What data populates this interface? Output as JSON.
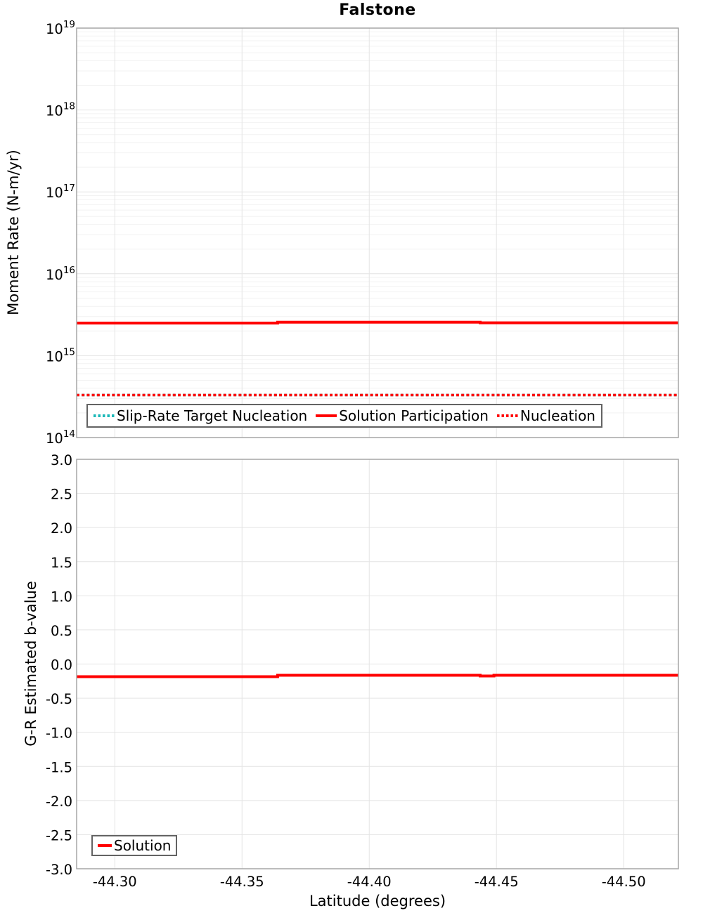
{
  "title": "Falstone",
  "colors": {
    "red": "#ff0000",
    "teal": "#1cb8b8",
    "grid_minor": "#f2f2f2",
    "grid_major": "#e4e4e4",
    "panel_border": "#a6a6a6",
    "legend_border": "#636363",
    "text": "#000000"
  },
  "chart_data": [
    {
      "type": "line",
      "panel": "moment-rate",
      "title": "Falstone",
      "ylabel": "Moment Rate (N-m/yr)",
      "yscale": "log",
      "ylim_exp": [
        14,
        19
      ],
      "y_ticks": [
        {
          "base": "10",
          "exp": "19"
        },
        {
          "base": "10",
          "exp": "18"
        },
        {
          "base": "10",
          "exp": "17"
        },
        {
          "base": "10",
          "exp": "16"
        },
        {
          "base": "10",
          "exp": "15"
        },
        {
          "base": "10",
          "exp": "14"
        }
      ],
      "xlim": [
        -44.285,
        -44.5215
      ],
      "x_grid": [
        -44.3,
        -44.35,
        -44.4,
        -44.45,
        -44.5
      ],
      "legend": [
        {
          "label": "Slip-Rate Target Nucleation",
          "color_key": "teal",
          "dash": "dotted"
        },
        {
          "label": "Solution Participation",
          "color_key": "red",
          "dash": "solid"
        },
        {
          "label": "Nucleation",
          "color_key": "red",
          "dash": "dotted"
        }
      ],
      "series": [
        {
          "name": "Slip-Rate Target Nucleation",
          "color_key": "teal",
          "dash": "dotted",
          "width": 3.5,
          "points": [
            [
              -44.285,
              330000000000000.0
            ],
            [
              -44.5215,
              330000000000000.0
            ]
          ]
        },
        {
          "name": "Nucleation",
          "color_key": "red",
          "dash": "dotted",
          "width": 3.5,
          "points": [
            [
              -44.285,
              330000000000000.0
            ],
            [
              -44.5215,
              330000000000000.0
            ]
          ]
        },
        {
          "name": "Solution Participation",
          "color_key": "red",
          "dash": "solid",
          "width": 4,
          "points": [
            [
              -44.285,
              2500000000000000.0
            ],
            [
              -44.364,
              2500000000000000.0
            ],
            [
              -44.364,
              2560000000000000.0
            ],
            [
              -44.4436,
              2560000000000000.0
            ],
            [
              -44.4436,
              2520000000000000.0
            ],
            [
              -44.5215,
              2520000000000000.0
            ]
          ]
        }
      ]
    },
    {
      "type": "line",
      "panel": "b-value",
      "ylabel": "G-R Estimated b-value",
      "xlabel": "Latitude (degrees)",
      "ylim": [
        -3.0,
        3.0
      ],
      "y_ticks": [
        {
          "value": 3.0,
          "label": "3.0"
        },
        {
          "value": 2.5,
          "label": "2.5"
        },
        {
          "value": 2.0,
          "label": "2.0"
        },
        {
          "value": 1.5,
          "label": "1.5"
        },
        {
          "value": 1.0,
          "label": "1.0"
        },
        {
          "value": 0.5,
          "label": "0.5"
        },
        {
          "value": 0.0,
          "label": "0.0"
        },
        {
          "value": -0.5,
          "label": "-0.5"
        },
        {
          "value": -1.0,
          "label": "-1.0"
        },
        {
          "value": -1.5,
          "label": "-1.5"
        },
        {
          "value": -2.0,
          "label": "-2.0"
        },
        {
          "value": -2.5,
          "label": "-2.5"
        },
        {
          "value": -3.0,
          "label": "-3.0"
        }
      ],
      "xlim": [
        -44.285,
        -44.5215
      ],
      "x_ticks": [
        {
          "value": -44.3,
          "label": "-44.30"
        },
        {
          "value": -44.35,
          "label": "-44.35"
        },
        {
          "value": -44.4,
          "label": "-44.40"
        },
        {
          "value": -44.45,
          "label": "-44.45"
        },
        {
          "value": -44.5,
          "label": "-44.50"
        }
      ],
      "legend": [
        {
          "label": "Solution",
          "color_key": "red",
          "dash": "solid"
        }
      ],
      "series": [
        {
          "name": "Solution",
          "color_key": "red",
          "dash": "solid",
          "width": 4,
          "points": [
            [
              -44.285,
              -0.185
            ],
            [
              -44.364,
              -0.185
            ],
            [
              -44.364,
              -0.165
            ],
            [
              -44.4436,
              -0.165
            ],
            [
              -44.4436,
              -0.175
            ],
            [
              -44.449,
              -0.175
            ],
            [
              -44.449,
              -0.165
            ],
            [
              -44.5215,
              -0.165
            ]
          ]
        }
      ]
    }
  ]
}
